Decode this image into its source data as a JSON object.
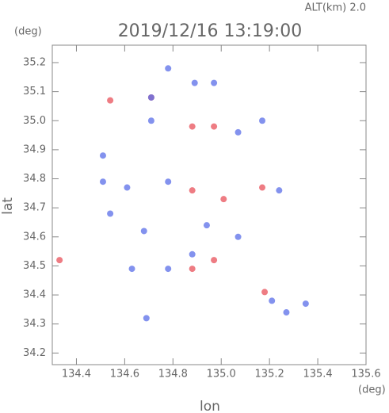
{
  "chart_data": {
    "type": "scatter",
    "title": "2019/12/16 13:19:00",
    "subtitle": "ALT(km) 2.0",
    "y_unit": "(deg)",
    "x_unit": "(deg)",
    "xlabel": "lon",
    "ylabel": "lat",
    "xlim": [
      134.3,
      135.6
    ],
    "ylim": [
      34.16,
      35.26
    ],
    "xticks": [
      134.4,
      134.6,
      134.8,
      {
        "value": 135.0,
        "label": "135.0"
      },
      135.2,
      135.4,
      135.6
    ],
    "yticks": [
      34.2,
      34.3,
      34.4,
      34.5,
      34.6,
      34.7,
      34.8,
      34.9,
      {
        "value": 35.0,
        "label": "35.0"
      },
      35.1,
      35.2
    ],
    "series": [
      {
        "color": "#e8505a",
        "x": [
          134.33,
          134.54,
          134.88,
          134.97,
          134.88,
          135.17,
          134.88,
          134.97,
          135.18,
          134.71,
          135.01
        ],
        "y": [
          34.52,
          35.07,
          34.98,
          34.98,
          34.76,
          34.77,
          34.49,
          34.52,
          34.41,
          35.08,
          34.73
        ]
      },
      {
        "color": "#5a6ee8",
        "x": [
          134.71,
          134.78,
          134.89,
          134.97,
          134.71,
          135.07,
          135.17,
          134.51,
          134.51,
          134.61,
          134.78,
          135.24,
          134.54,
          134.68,
          134.94,
          135.07,
          134.88,
          134.78,
          134.63,
          135.21,
          135.27,
          135.35,
          134.69
        ],
        "y": [
          35.08,
          35.18,
          35.13,
          35.13,
          35.0,
          34.96,
          35.0,
          34.88,
          34.79,
          34.77,
          34.79,
          34.76,
          34.68,
          34.62,
          34.64,
          34.6,
          34.54,
          34.49,
          34.49,
          34.38,
          34.34,
          34.37,
          34.32
        ]
      }
    ]
  }
}
